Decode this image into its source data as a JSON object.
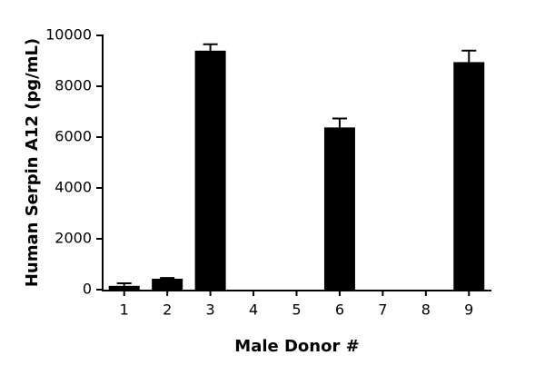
{
  "chart_data": {
    "type": "bar",
    "x_label": "Male Donor #",
    "y_label": "Human Serpin A12 (pg/mL)",
    "categories": [
      "1",
      "2",
      "3",
      "4",
      "5",
      "6",
      "7",
      "8",
      "9"
    ],
    "values": [
      150,
      430,
      9400,
      0,
      0,
      6380,
      0,
      0,
      8950
    ],
    "errors": [
      100,
      30,
      250,
      null,
      null,
      350,
      null,
      null,
      450
    ],
    "color": "#000000",
    "ylim": [
      0,
      10000
    ],
    "yticks": [
      0,
      2000,
      4000,
      6000,
      8000,
      10000
    ],
    "grid": false
  }
}
